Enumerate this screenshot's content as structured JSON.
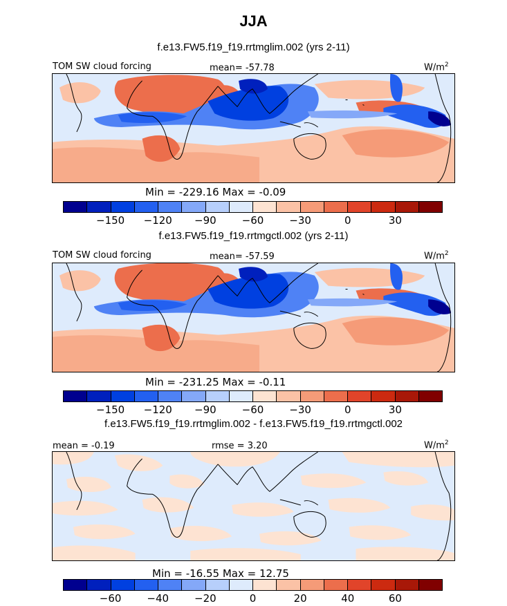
{
  "season": "JJA",
  "panels": [
    {
      "title": "f.e13.FW5.f19_f19.rrtmglim.002 (yrs 2-11)",
      "left_label": "TOM SW cloud forcing",
      "center_label": "mean=  -57.78",
      "units_label": "W/m",
      "units_sup": "2",
      "minmax": "Min = -229.16 Max =  -0.09",
      "colorbar_ticks": [
        "-150",
        "-120",
        "-90",
        "-60",
        "-30",
        "0",
        "30"
      ]
    },
    {
      "title": "f.e13.FW5.f19_f19.rrtmgctl.002 (yrs 2-11)",
      "left_label": "TOM SW cloud forcing",
      "center_label": "mean=  -57.59",
      "units_label": "W/m",
      "units_sup": "2",
      "minmax": "Min = -231.25 Max =  -0.11",
      "colorbar_ticks": [
        "-150",
        "-120",
        "-90",
        "-60",
        "-30",
        "0",
        "30"
      ]
    },
    {
      "title": "f.e13.FW5.f19_f19.rrtmglim.002 - f.e13.FW5.f19_f19.rrtmgctl.002",
      "left_label": "mean =  -0.19",
      "center_label": "rmse =    3.20",
      "units_label": "W/m",
      "units_sup": "2",
      "minmax": "Min = -16.55 Max =  12.75",
      "colorbar_ticks": [
        "-60",
        "-40",
        "-20",
        "0",
        "20",
        "40",
        "60"
      ]
    }
  ],
  "colors": {
    "colorbar": [
      "#00008f",
      "#0020bd",
      "#0040e0",
      "#2360f0",
      "#4f82f5",
      "#84a8f8",
      "#b7cffb",
      "#deebfc",
      "#fde3d2",
      "#fbc2a6",
      "#f59b78",
      "#ec6e4c",
      "#e1442a",
      "#cc2a10",
      "#a81808",
      "#800000"
    ],
    "ocean_light": "#deebfc",
    "land_pos": "#fbc2a6",
    "strong_pos": "#ec6e4c",
    "neg_mid": "#4f82f5",
    "neg_strong": "#0040e0"
  },
  "chart_data": [
    {
      "type": "heatmap",
      "title": "f.e13.FW5.f19_f19.rrtmglim.002 (yrs 2-11)",
      "variable": "TOM SW cloud forcing",
      "units": "W/m2",
      "mean": -57.78,
      "min": -229.16,
      "max": -0.09,
      "contour_levels": [
        -165,
        -150,
        -135,
        -120,
        -105,
        -90,
        -75,
        -60,
        -45,
        -30,
        -15,
        0,
        15,
        30,
        45
      ],
      "colorbar_ticks": [
        -150,
        -120,
        -90,
        -60,
        -30,
        0,
        30
      ]
    },
    {
      "type": "heatmap",
      "title": "f.e13.FW5.f19_f19.rrtmgctl.002 (yrs 2-11)",
      "variable": "TOM SW cloud forcing",
      "units": "W/m2",
      "mean": -57.59,
      "min": -231.25,
      "max": -0.11,
      "contour_levels": [
        -165,
        -150,
        -135,
        -120,
        -105,
        -90,
        -75,
        -60,
        -45,
        -30,
        -15,
        0,
        15,
        30,
        45
      ],
      "colorbar_ticks": [
        -150,
        -120,
        -90,
        -60,
        -30,
        0,
        30
      ]
    },
    {
      "type": "heatmap",
      "title": "f.e13.FW5.f19_f19.rrtmglim.002 - f.e13.FW5.f19_f19.rrtmgctl.002",
      "units": "W/m2",
      "mean": -0.19,
      "rmse": 3.2,
      "min": -16.55,
      "max": 12.75,
      "contour_levels": [
        -70,
        -60,
        -50,
        -40,
        -30,
        -20,
        -10,
        0,
        10,
        20,
        30,
        40,
        50,
        60,
        70
      ],
      "colorbar_ticks": [
        -60,
        -40,
        -20,
        0,
        20,
        40,
        60
      ]
    }
  ]
}
